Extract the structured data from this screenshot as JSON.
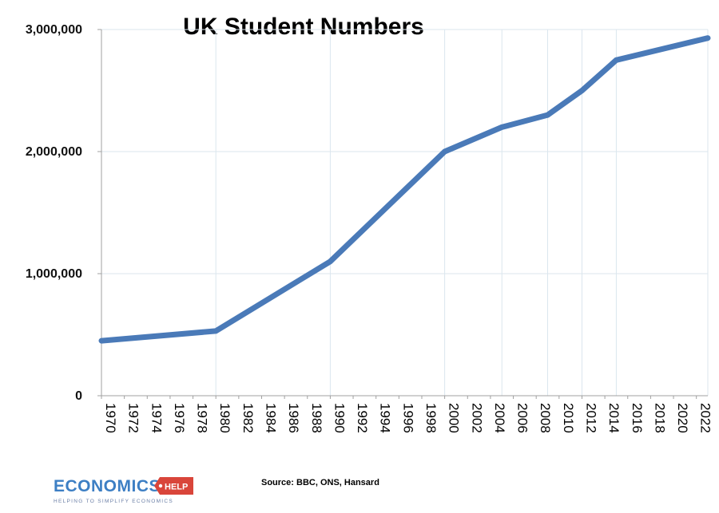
{
  "chart_data": {
    "type": "line",
    "title": "UK Student Numbers",
    "xlabel": "",
    "ylabel": "",
    "x_tick_labels": [
      "1970",
      "1972",
      "1974",
      "1976",
      "1978",
      "1980",
      "1982",
      "1984",
      "1986",
      "1988",
      "1990",
      "1992",
      "1994",
      "1996",
      "1998",
      "2000",
      "2002",
      "2004",
      "2006",
      "2008",
      "2010",
      "2012",
      "2014",
      "2016",
      "2018",
      "2020",
      "2022"
    ],
    "y_tick_labels": [
      "0",
      "1,000,000",
      "2,000,000",
      "3,000,000"
    ],
    "y_tick_values": [
      0,
      1000000,
      2000000,
      3000000
    ],
    "xlim": [
      1970,
      2023
    ],
    "ylim": [
      0,
      3000000
    ],
    "grid": "vertical and horizontal light lines",
    "series": [
      {
        "color": "#4a7ab8",
        "points": [
          {
            "x": 1970,
            "y": 450000
          },
          {
            "x": 1980,
            "y": 530000
          },
          {
            "x": 1990,
            "y": 1100000
          },
          {
            "x": 2000,
            "y": 2000000
          },
          {
            "x": 2005,
            "y": 2200000
          },
          {
            "x": 2009,
            "y": 2300000
          },
          {
            "x": 2012,
            "y": 2500000
          },
          {
            "x": 2015,
            "y": 2750000
          },
          {
            "x": 2023,
            "y": 2930000
          }
        ]
      }
    ],
    "source": "Source: BBC, ONS, Hansard"
  },
  "logo": {
    "main": "ECONOMICS",
    "tag": "HELP",
    "subtitle": "HELPING TO SIMPLIFY ECONOMICS",
    "main_color": "#3d7fc4",
    "tag_color": "#d9453a"
  }
}
